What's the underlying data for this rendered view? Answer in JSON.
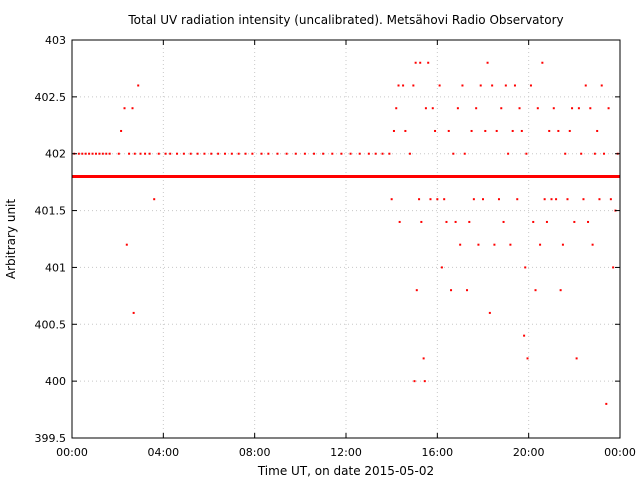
{
  "chart_data": {
    "type": "scatter",
    "title": "Total UV radiation intensity (uncalibrated). Metsähovi Radio Observatory",
    "xlabel": "Time UT, on date 2015-05-02",
    "ylabel": "Arbitrary unit",
    "x_unit": "hours UT",
    "xlim": [
      0,
      24
    ],
    "ylim": [
      399.5,
      403
    ],
    "x_ticks": [
      {
        "value": 0,
        "label": "00:00"
      },
      {
        "value": 4,
        "label": "04:00"
      },
      {
        "value": 8,
        "label": "08:00"
      },
      {
        "value": 12,
        "label": "12:00"
      },
      {
        "value": 16,
        "label": "16:00"
      },
      {
        "value": 20,
        "label": "20:00"
      },
      {
        "value": 24,
        "label": "00:00"
      }
    ],
    "y_ticks": [
      {
        "value": 399.5,
        "label": "399.5"
      },
      {
        "value": 400,
        "label": "400"
      },
      {
        "value": 400.5,
        "label": "400.5"
      },
      {
        "value": 401,
        "label": "401"
      },
      {
        "value": 401.5,
        "label": "401.5"
      },
      {
        "value": 402,
        "label": "402"
      },
      {
        "value": 402.5,
        "label": "402.5"
      },
      {
        "value": 403,
        "label": "403"
      }
    ],
    "grid": true,
    "legend": false,
    "color": "#ff0000",
    "series": [
      {
        "baseline_value": 401.8,
        "baseline_range": [
          0,
          24
        ],
        "outliers": [
          [
            0.1,
            402
          ],
          [
            0.3,
            402
          ],
          [
            0.45,
            402
          ],
          [
            0.6,
            402
          ],
          [
            0.75,
            402
          ],
          [
            0.9,
            402
          ],
          [
            1.05,
            402
          ],
          [
            1.2,
            402
          ],
          [
            1.35,
            402
          ],
          [
            1.5,
            402
          ],
          [
            1.65,
            402
          ],
          [
            2.05,
            402
          ],
          [
            2.15,
            402.2
          ],
          [
            2.3,
            402.4
          ],
          [
            2.4,
            401.2
          ],
          [
            2.5,
            402
          ],
          [
            2.65,
            402.4
          ],
          [
            2.7,
            400.6
          ],
          [
            2.75,
            402
          ],
          [
            2.9,
            402.6
          ],
          [
            3.0,
            402
          ],
          [
            3.2,
            402
          ],
          [
            3.4,
            402
          ],
          [
            3.6,
            401.6
          ],
          [
            3.8,
            402
          ],
          [
            4.1,
            402
          ],
          [
            4.3,
            402
          ],
          [
            4.6,
            402
          ],
          [
            4.9,
            402
          ],
          [
            5.2,
            402
          ],
          [
            5.5,
            402
          ],
          [
            5.8,
            402
          ],
          [
            6.1,
            402
          ],
          [
            6.4,
            402
          ],
          [
            6.7,
            402
          ],
          [
            7.0,
            402
          ],
          [
            7.3,
            402
          ],
          [
            7.6,
            402
          ],
          [
            7.9,
            402
          ],
          [
            8.3,
            402
          ],
          [
            8.6,
            402
          ],
          [
            9.0,
            402
          ],
          [
            9.4,
            402
          ],
          [
            9.8,
            402
          ],
          [
            10.2,
            402
          ],
          [
            10.6,
            402
          ],
          [
            11.0,
            402
          ],
          [
            11.4,
            402
          ],
          [
            11.8,
            402
          ],
          [
            12.2,
            402
          ],
          [
            12.6,
            402
          ],
          [
            13.0,
            402
          ],
          [
            13.3,
            402
          ],
          [
            13.6,
            402
          ],
          [
            13.9,
            402
          ],
          [
            14.0,
            401.6
          ],
          [
            14.1,
            402.2
          ],
          [
            14.2,
            402.4
          ],
          [
            14.3,
            402.6
          ],
          [
            14.35,
            401.4
          ],
          [
            14.5,
            402.6
          ],
          [
            14.6,
            402.2
          ],
          [
            14.8,
            402
          ],
          [
            14.95,
            402.6
          ],
          [
            15.0,
            400
          ],
          [
            15.05,
            402.8
          ],
          [
            15.1,
            400.8
          ],
          [
            15.2,
            401.6
          ],
          [
            15.25,
            402.8
          ],
          [
            15.3,
            401.4
          ],
          [
            15.4,
            400.2
          ],
          [
            15.45,
            400
          ],
          [
            15.5,
            402.4
          ],
          [
            15.6,
            402.8
          ],
          [
            15.7,
            401.6
          ],
          [
            15.8,
            402.4
          ],
          [
            15.9,
            402.2
          ],
          [
            16.0,
            401.6
          ],
          [
            16.1,
            402.6
          ],
          [
            16.2,
            401
          ],
          [
            16.3,
            401.6
          ],
          [
            16.4,
            401.4
          ],
          [
            16.5,
            402.2
          ],
          [
            16.6,
            400.8
          ],
          [
            16.7,
            402
          ],
          [
            16.8,
            401.4
          ],
          [
            16.9,
            402.4
          ],
          [
            17.0,
            401.2
          ],
          [
            17.1,
            402.6
          ],
          [
            17.2,
            402
          ],
          [
            17.3,
            400.8
          ],
          [
            17.4,
            401.4
          ],
          [
            17.5,
            402.2
          ],
          [
            17.6,
            401.6
          ],
          [
            17.7,
            402.4
          ],
          [
            17.8,
            401.2
          ],
          [
            17.9,
            402.6
          ],
          [
            18.0,
            401.6
          ],
          [
            18.1,
            402.2
          ],
          [
            18.2,
            402.8
          ],
          [
            18.3,
            400.6
          ],
          [
            18.4,
            402.6
          ],
          [
            18.5,
            401.2
          ],
          [
            18.6,
            402.2
          ],
          [
            18.7,
            401.6
          ],
          [
            18.8,
            402.4
          ],
          [
            18.9,
            401.4
          ],
          [
            19.0,
            402.6
          ],
          [
            19.1,
            402
          ],
          [
            19.2,
            401.2
          ],
          [
            19.3,
            402.2
          ],
          [
            19.4,
            402.6
          ],
          [
            19.5,
            401.6
          ],
          [
            19.6,
            402.4
          ],
          [
            19.7,
            402.2
          ],
          [
            19.8,
            400.4
          ],
          [
            19.85,
            401
          ],
          [
            19.9,
            402
          ],
          [
            19.95,
            400.2
          ],
          [
            20.1,
            402.6
          ],
          [
            20.2,
            401.4
          ],
          [
            20.3,
            400.8
          ],
          [
            20.4,
            402.4
          ],
          [
            20.5,
            401.2
          ],
          [
            20.6,
            402.8
          ],
          [
            20.7,
            401.6
          ],
          [
            20.8,
            401.4
          ],
          [
            20.9,
            402.2
          ],
          [
            21.0,
            401.6
          ],
          [
            21.1,
            402.4
          ],
          [
            21.2,
            401.6
          ],
          [
            21.3,
            402.2
          ],
          [
            21.4,
            400.8
          ],
          [
            21.5,
            401.2
          ],
          [
            21.6,
            402
          ],
          [
            21.7,
            401.6
          ],
          [
            21.8,
            402.2
          ],
          [
            21.9,
            402.4
          ],
          [
            22.0,
            401.4
          ],
          [
            22.1,
            400.2
          ],
          [
            22.2,
            402.4
          ],
          [
            22.3,
            402
          ],
          [
            22.4,
            401.6
          ],
          [
            22.5,
            402.6
          ],
          [
            22.6,
            401.4
          ],
          [
            22.7,
            402.4
          ],
          [
            22.8,
            401.2
          ],
          [
            22.9,
            402
          ],
          [
            23.0,
            402.2
          ],
          [
            23.1,
            401.6
          ],
          [
            23.2,
            402.6
          ],
          [
            23.3,
            402
          ],
          [
            23.4,
            399.8
          ],
          [
            23.5,
            402.4
          ],
          [
            23.6,
            401.6
          ],
          [
            23.7,
            401
          ],
          [
            23.8,
            401.5
          ],
          [
            23.9,
            402
          ]
        ]
      }
    ]
  }
}
